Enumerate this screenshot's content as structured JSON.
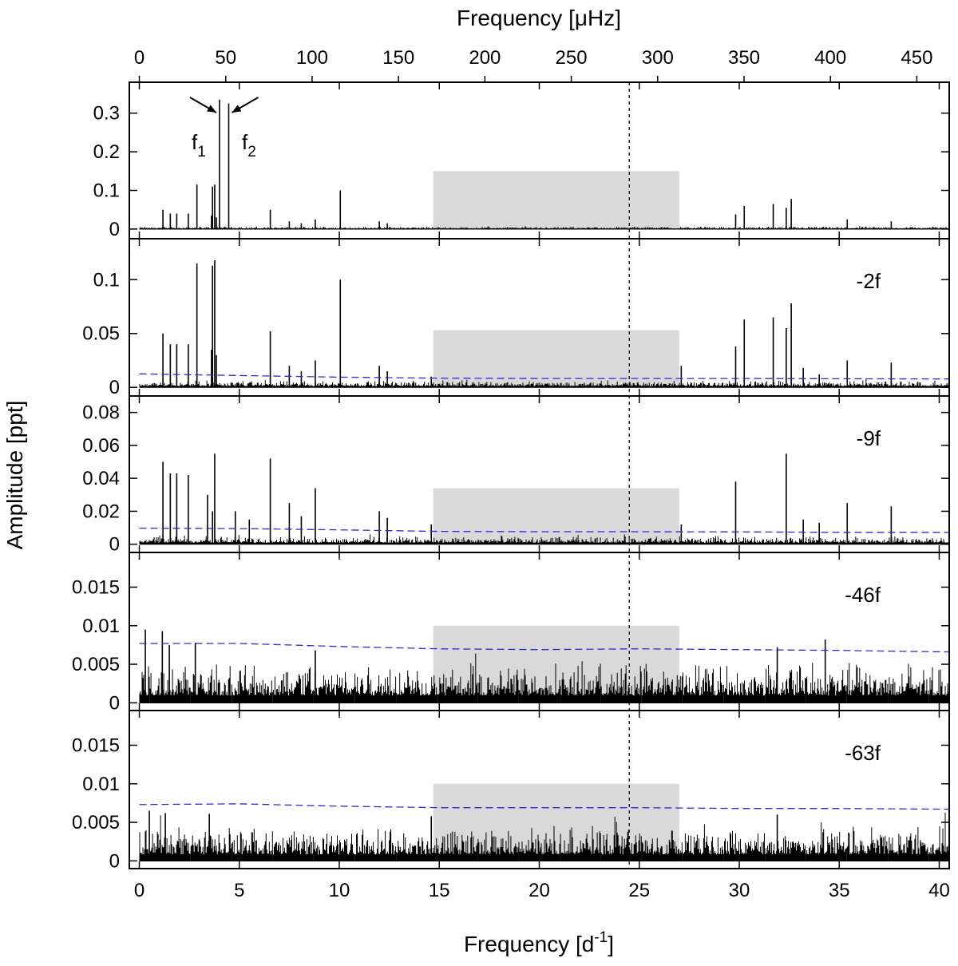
{
  "chart_data": {
    "type": "line",
    "title": "",
    "xlabel": "Frequency [d",
    "xlabel_sup": "-1",
    "xlabel_end": "]",
    "x2label": "Frequency [μHz]",
    "ylabel": "Amplitude [ppt]",
    "xlim": [
      -0.5,
      40.5
    ],
    "x2lim": [
      -5.79,
      468.75
    ],
    "x_ticks": [
      "0",
      "5",
      "10",
      "15",
      "20",
      "25",
      "30",
      "35",
      "40"
    ],
    "x2_ticks": [
      "0",
      "50",
      "100",
      "150",
      "200",
      "250",
      "300",
      "350",
      "400",
      "450"
    ],
    "dashed_vertical_line_x": 24.5,
    "shaded_region_x": [
      14.7,
      27.0
    ],
    "panels": [
      {
        "label": "",
        "ylim": [
          -0.025,
          0.38
        ],
        "y_ticks": [
          "0",
          "0.1",
          "0.2",
          "0.3"
        ],
        "shaded_top": 0.15,
        "noise_base": 0.004,
        "peaks": [
          {
            "x": 4.01,
            "y": 0.335
          },
          {
            "x": 4.47,
            "y": 0.325
          },
          {
            "x": 2.88,
            "y": 0.115
          },
          {
            "x": 3.66,
            "y": 0.11
          },
          {
            "x": 3.77,
            "y": 0.115
          },
          {
            "x": 3.61,
            "y": 0.035
          },
          {
            "x": 3.85,
            "y": 0.03
          },
          {
            "x": 10.05,
            "y": 0.1
          },
          {
            "x": 1.18,
            "y": 0.05
          },
          {
            "x": 1.55,
            "y": 0.04
          },
          {
            "x": 1.87,
            "y": 0.04
          },
          {
            "x": 2.45,
            "y": 0.04
          },
          {
            "x": 6.55,
            "y": 0.05
          },
          {
            "x": 7.5,
            "y": 0.02
          },
          {
            "x": 8.1,
            "y": 0.015
          },
          {
            "x": 8.8,
            "y": 0.025
          },
          {
            "x": 12.0,
            "y": 0.02
          },
          {
            "x": 12.4,
            "y": 0.015
          },
          {
            "x": 29.82,
            "y": 0.038
          },
          {
            "x": 30.25,
            "y": 0.06
          },
          {
            "x": 31.7,
            "y": 0.065
          },
          {
            "x": 32.35,
            "y": 0.055
          },
          {
            "x": 32.6,
            "y": 0.078
          },
          {
            "x": 35.4,
            "y": 0.025
          },
          {
            "x": 37.6,
            "y": 0.02
          }
        ],
        "threshold": []
      },
      {
        "label": "-2f",
        "ylim": [
          -0.008,
          0.138
        ],
        "y_ticks": [
          "0",
          "0.05",
          "0.1"
        ],
        "shaded_top": 0.053,
        "noise_base": 0.004,
        "peaks": [
          {
            "x": 2.88,
            "y": 0.115
          },
          {
            "x": 3.66,
            "y": 0.113
          },
          {
            "x": 3.77,
            "y": 0.118
          },
          {
            "x": 3.61,
            "y": 0.035
          },
          {
            "x": 3.85,
            "y": 0.03
          },
          {
            "x": 10.05,
            "y": 0.1
          },
          {
            "x": 1.18,
            "y": 0.05
          },
          {
            "x": 1.55,
            "y": 0.04
          },
          {
            "x": 1.87,
            "y": 0.04
          },
          {
            "x": 2.45,
            "y": 0.04
          },
          {
            "x": 6.55,
            "y": 0.052
          },
          {
            "x": 7.5,
            "y": 0.02
          },
          {
            "x": 8.1,
            "y": 0.015
          },
          {
            "x": 8.8,
            "y": 0.025
          },
          {
            "x": 12.0,
            "y": 0.02
          },
          {
            "x": 12.4,
            "y": 0.015
          },
          {
            "x": 14.6,
            "y": 0.01
          },
          {
            "x": 29.82,
            "y": 0.038
          },
          {
            "x": 30.25,
            "y": 0.063
          },
          {
            "x": 31.7,
            "y": 0.065
          },
          {
            "x": 32.35,
            "y": 0.055
          },
          {
            "x": 32.6,
            "y": 0.078
          },
          {
            "x": 33.2,
            "y": 0.018
          },
          {
            "x": 34.0,
            "y": 0.012
          },
          {
            "x": 35.4,
            "y": 0.025
          },
          {
            "x": 37.6,
            "y": 0.023
          },
          {
            "x": 27.1,
            "y": 0.02
          }
        ],
        "threshold": [
          [
            0,
            0.0125
          ],
          [
            5,
            0.011
          ],
          [
            10,
            0.0095
          ],
          [
            15,
            0.0085
          ],
          [
            20,
            0.0082
          ],
          [
            25,
            0.0082
          ],
          [
            30,
            0.0082
          ],
          [
            35,
            0.008
          ],
          [
            40.5,
            0.0078
          ]
        ]
      },
      {
        "label": "-9f",
        "ylim": [
          -0.005,
          0.09
        ],
        "y_ticks": [
          "0",
          "0.02",
          "0.04",
          "0.06",
          "0.08"
        ],
        "shaded_top": 0.034,
        "noise_base": 0.003,
        "peaks": [
          {
            "x": 1.18,
            "y": 0.05
          },
          {
            "x": 1.55,
            "y": 0.043
          },
          {
            "x": 1.87,
            "y": 0.043
          },
          {
            "x": 2.45,
            "y": 0.042
          },
          {
            "x": 3.41,
            "y": 0.03
          },
          {
            "x": 3.77,
            "y": 0.055
          },
          {
            "x": 3.66,
            "y": 0.02
          },
          {
            "x": 6.55,
            "y": 0.052
          },
          {
            "x": 7.5,
            "y": 0.025
          },
          {
            "x": 8.1,
            "y": 0.017
          },
          {
            "x": 8.8,
            "y": 0.034
          },
          {
            "x": 12.0,
            "y": 0.02
          },
          {
            "x": 12.4,
            "y": 0.016
          },
          {
            "x": 14.6,
            "y": 0.012
          },
          {
            "x": 27.1,
            "y": 0.012
          },
          {
            "x": 29.82,
            "y": 0.038
          },
          {
            "x": 32.35,
            "y": 0.055
          },
          {
            "x": 33.2,
            "y": 0.015
          },
          {
            "x": 34.0,
            "y": 0.013
          },
          {
            "x": 35.4,
            "y": 0.025
          },
          {
            "x": 37.6,
            "y": 0.023
          },
          {
            "x": 5.5,
            "y": 0.015
          },
          {
            "x": 4.8,
            "y": 0.02
          }
        ],
        "threshold": [
          [
            0,
            0.0098
          ],
          [
            5,
            0.0095
          ],
          [
            10,
            0.0087
          ],
          [
            15,
            0.0078
          ],
          [
            20,
            0.0076
          ],
          [
            25,
            0.0076
          ],
          [
            30,
            0.0075
          ],
          [
            35,
            0.0072
          ],
          [
            40.5,
            0.0072
          ]
        ]
      },
      {
        "label": "-46f",
        "ylim": [
          -0.001,
          0.0195
        ],
        "y_ticks": [
          "0",
          "0.005",
          "0.01",
          "0.015"
        ],
        "shaded_top": 0.01,
        "noise_base": 0.0032,
        "peaks": [
          {
            "x": 0.3,
            "y": 0.0095
          },
          {
            "x": 1.15,
            "y": 0.0093
          },
          {
            "x": 1.5,
            "y": 0.0075
          },
          {
            "x": 2.8,
            "y": 0.0078
          },
          {
            "x": 8.8,
            "y": 0.0068
          },
          {
            "x": 31.9,
            "y": 0.0072
          },
          {
            "x": 34.3,
            "y": 0.0082
          }
        ],
        "threshold": [
          [
            0,
            0.0077
          ],
          [
            5,
            0.0077
          ],
          [
            10,
            0.0073
          ],
          [
            15,
            0.007
          ],
          [
            20,
            0.0069
          ],
          [
            25,
            0.007
          ],
          [
            30,
            0.0069
          ],
          [
            35,
            0.0068
          ],
          [
            40.5,
            0.0066
          ]
        ]
      },
      {
        "label": "-63f",
        "ylim": [
          -0.001,
          0.0195
        ],
        "y_ticks": [
          "0",
          "0.005",
          "0.01",
          "0.015"
        ],
        "shaded_top": 0.01,
        "noise_base": 0.0028,
        "peaks": [
          {
            "x": 0.5,
            "y": 0.0065
          },
          {
            "x": 1.3,
            "y": 0.0062
          },
          {
            "x": 3.5,
            "y": 0.0061
          },
          {
            "x": 31.9,
            "y": 0.006
          },
          {
            "x": 14.6,
            "y": 0.0058
          }
        ],
        "threshold": [
          [
            0,
            0.0073
          ],
          [
            5,
            0.0074
          ],
          [
            10,
            0.0071
          ],
          [
            15,
            0.0069
          ],
          [
            20,
            0.0069
          ],
          [
            25,
            0.0069
          ],
          [
            30,
            0.0068
          ],
          [
            35,
            0.0068
          ],
          [
            40.5,
            0.0067
          ]
        ]
      }
    ],
    "annotations": {
      "f1": "f",
      "f1_sub": "1",
      "f2": "f",
      "f2_sub": "2",
      "f1_x": 4.01,
      "f2_x": 4.47
    }
  },
  "colors": {
    "spectrum": "#000000",
    "threshold": "#2b2bd6",
    "shade": "#d9d9d9",
    "frame": "#000000"
  }
}
